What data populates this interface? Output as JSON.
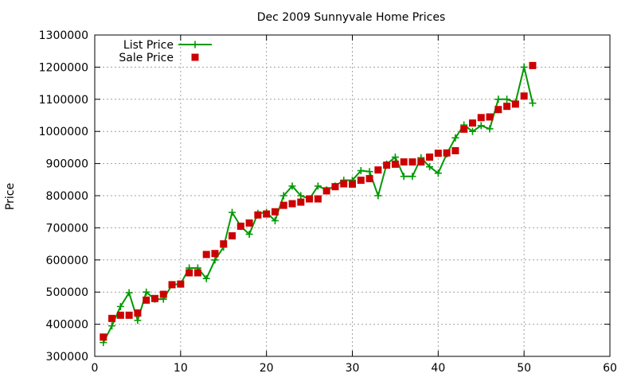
{
  "chart_data": {
    "type": "scatter",
    "title": "Dec 2009 Sunnyvale Home Prices",
    "xlabel": "",
    "ylabel": "Price",
    "xlim": [
      0,
      60
    ],
    "ylim": [
      300000,
      1300000
    ],
    "x_ticks": [
      0,
      10,
      20,
      30,
      40,
      50,
      60
    ],
    "y_ticks": [
      300000,
      400000,
      500000,
      600000,
      700000,
      800000,
      900000,
      1000000,
      1100000,
      1200000,
      1300000
    ],
    "grid": true,
    "legend_position": "top-left",
    "series": [
      {
        "name": "List Price",
        "style": "line-points",
        "marker": "plus",
        "color": "#009900",
        "x": [
          1,
          2,
          3,
          4,
          5,
          6,
          7,
          8,
          9,
          10,
          11,
          12,
          13,
          14,
          15,
          16,
          17,
          18,
          19,
          20,
          21,
          22,
          23,
          24,
          25,
          26,
          27,
          28,
          29,
          30,
          31,
          32,
          33,
          34,
          35,
          36,
          37,
          38,
          39,
          40,
          41,
          42,
          43,
          44,
          45,
          46,
          47,
          48,
          49,
          50,
          51
        ],
        "y": [
          343000,
          395000,
          455000,
          498000,
          412000,
          500000,
          478000,
          478000,
          523000,
          525000,
          575000,
          575000,
          542000,
          600000,
          640000,
          748000,
          705000,
          680000,
          745000,
          748000,
          722000,
          800000,
          830000,
          800000,
          790000,
          830000,
          818000,
          830000,
          848000,
          848000,
          878000,
          875000,
          800000,
          898000,
          920000,
          860000,
          860000,
          918000,
          890000,
          870000,
          930000,
          980000,
          1020000,
          1000000,
          1018000,
          1008000,
          1100000,
          1100000,
          1090000,
          1200000,
          1088000
        ]
      },
      {
        "name": "Sale Price",
        "style": "points",
        "marker": "square",
        "color": "#cc0000",
        "x": [
          1,
          2,
          3,
          4,
          5,
          6,
          7,
          8,
          9,
          10,
          11,
          12,
          13,
          14,
          15,
          16,
          17,
          18,
          19,
          20,
          21,
          22,
          23,
          24,
          25,
          26,
          27,
          28,
          29,
          30,
          31,
          32,
          33,
          34,
          35,
          36,
          37,
          38,
          39,
          40,
          41,
          42,
          43,
          44,
          45,
          46,
          47,
          48,
          49,
          50,
          51
        ],
        "y": [
          360000,
          418000,
          428000,
          428000,
          435000,
          475000,
          480000,
          493000,
          523000,
          525000,
          560000,
          560000,
          617000,
          620000,
          650000,
          675000,
          705000,
          715000,
          740000,
          743000,
          750000,
          770000,
          775000,
          780000,
          790000,
          790000,
          815000,
          828000,
          837000,
          836000,
          848000,
          853000,
          880000,
          895000,
          898000,
          905000,
          905000,
          905000,
          920000,
          932000,
          933000,
          940000,
          1007000,
          1026000,
          1043000,
          1045000,
          1068000,
          1078000,
          1085000,
          1110000,
          1205000
        ]
      }
    ]
  }
}
